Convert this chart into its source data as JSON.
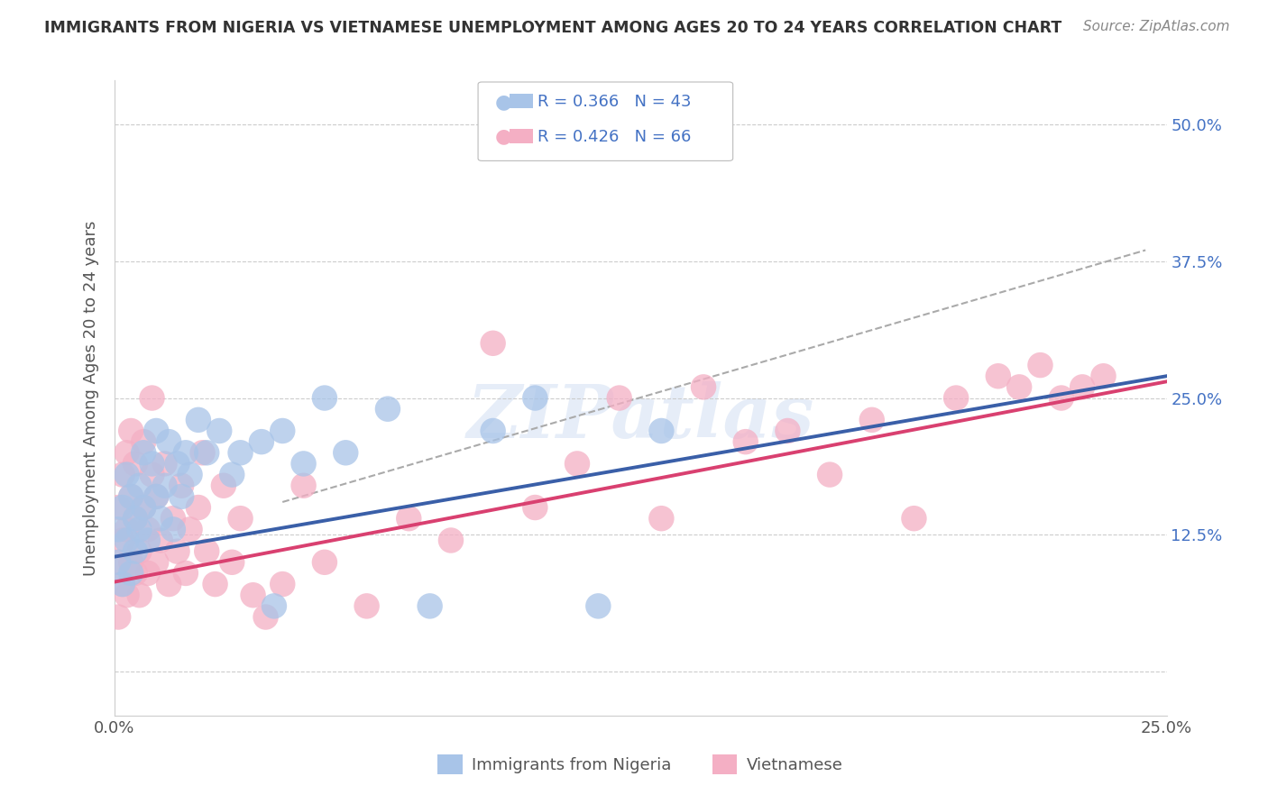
{
  "title": "IMMIGRANTS FROM NIGERIA VS VIETNAMESE UNEMPLOYMENT AMONG AGES 20 TO 24 YEARS CORRELATION CHART",
  "source": "Source: ZipAtlas.com",
  "ylabel": "Unemployment Among Ages 20 to 24 years",
  "xlim": [
    0.0,
    0.25
  ],
  "ylim": [
    -0.04,
    0.54
  ],
  "xticks": [
    0.0,
    0.05,
    0.1,
    0.15,
    0.2,
    0.25
  ],
  "xtick_labels": [
    "0.0%",
    "",
    "",
    "",
    "",
    "25.0%"
  ],
  "ytick_positions": [
    0.0,
    0.125,
    0.25,
    0.375,
    0.5
  ],
  "ytick_labels": [
    "",
    "12.5%",
    "25.0%",
    "37.5%",
    "50.0%"
  ],
  "legend_r_nigeria": "R = 0.366",
  "legend_n_nigeria": "N = 43",
  "legend_r_vietnamese": "R = 0.426",
  "legend_n_vietnamese": "N = 66",
  "nigeria_color": "#a8c4e8",
  "vietnamese_color": "#f4afc4",
  "nigeria_line_color": "#3a5fa8",
  "vietnamese_line_color": "#d94070",
  "watermark": "ZIPatlas",
  "background_color": "#ffffff",
  "grid_color": "#cccccc",
  "nigeria_scatter_x": [
    0.001,
    0.001,
    0.002,
    0.002,
    0.003,
    0.003,
    0.004,
    0.004,
    0.005,
    0.005,
    0.006,
    0.006,
    0.007,
    0.007,
    0.008,
    0.009,
    0.01,
    0.01,
    0.011,
    0.012,
    0.013,
    0.014,
    0.015,
    0.016,
    0.017,
    0.018,
    0.02,
    0.022,
    0.025,
    0.028,
    0.03,
    0.035,
    0.038,
    0.04,
    0.045,
    0.05,
    0.055,
    0.065,
    0.075,
    0.09,
    0.1,
    0.115,
    0.13
  ],
  "nigeria_scatter_y": [
    0.1,
    0.13,
    0.08,
    0.15,
    0.12,
    0.18,
    0.09,
    0.16,
    0.11,
    0.14,
    0.17,
    0.13,
    0.2,
    0.15,
    0.12,
    0.19,
    0.16,
    0.22,
    0.14,
    0.17,
    0.21,
    0.13,
    0.19,
    0.16,
    0.2,
    0.18,
    0.23,
    0.2,
    0.22,
    0.18,
    0.2,
    0.21,
    0.06,
    0.22,
    0.19,
    0.25,
    0.2,
    0.24,
    0.06,
    0.22,
    0.25,
    0.06,
    0.22
  ],
  "vietnamese_scatter_x": [
    0.001,
    0.001,
    0.001,
    0.002,
    0.002,
    0.002,
    0.003,
    0.003,
    0.003,
    0.004,
    0.004,
    0.004,
    0.005,
    0.005,
    0.005,
    0.006,
    0.006,
    0.007,
    0.007,
    0.008,
    0.008,
    0.009,
    0.009,
    0.01,
    0.01,
    0.011,
    0.012,
    0.013,
    0.014,
    0.015,
    0.016,
    0.017,
    0.018,
    0.02,
    0.021,
    0.022,
    0.024,
    0.026,
    0.028,
    0.03,
    0.033,
    0.036,
    0.04,
    0.045,
    0.05,
    0.06,
    0.07,
    0.08,
    0.09,
    0.1,
    0.11,
    0.12,
    0.13,
    0.14,
    0.15,
    0.16,
    0.17,
    0.18,
    0.19,
    0.2,
    0.21,
    0.215,
    0.22,
    0.225,
    0.23,
    0.235
  ],
  "vietnamese_scatter_y": [
    0.05,
    0.1,
    0.15,
    0.08,
    0.12,
    0.18,
    0.07,
    0.13,
    0.2,
    0.1,
    0.16,
    0.22,
    0.09,
    0.14,
    0.19,
    0.07,
    0.11,
    0.15,
    0.21,
    0.09,
    0.13,
    0.18,
    0.25,
    0.1,
    0.16,
    0.12,
    0.19,
    0.08,
    0.14,
    0.11,
    0.17,
    0.09,
    0.13,
    0.15,
    0.2,
    0.11,
    0.08,
    0.17,
    0.1,
    0.14,
    0.07,
    0.05,
    0.08,
    0.17,
    0.1,
    0.06,
    0.14,
    0.12,
    0.3,
    0.15,
    0.19,
    0.25,
    0.14,
    0.26,
    0.21,
    0.22,
    0.18,
    0.23,
    0.14,
    0.25,
    0.27,
    0.26,
    0.28,
    0.25,
    0.26,
    0.27
  ],
  "nigeria_line_x0": 0.0,
  "nigeria_line_y0": 0.105,
  "nigeria_line_x1": 0.25,
  "nigeria_line_y1": 0.27,
  "vietnamese_line_x0": 0.0,
  "vietnamese_line_y0": 0.082,
  "vietnamese_line_x1": 0.25,
  "vietnamese_line_y1": 0.265,
  "dash_line_x0": 0.04,
  "dash_line_y0": 0.155,
  "dash_line_x1": 0.245,
  "dash_line_y1": 0.385
}
